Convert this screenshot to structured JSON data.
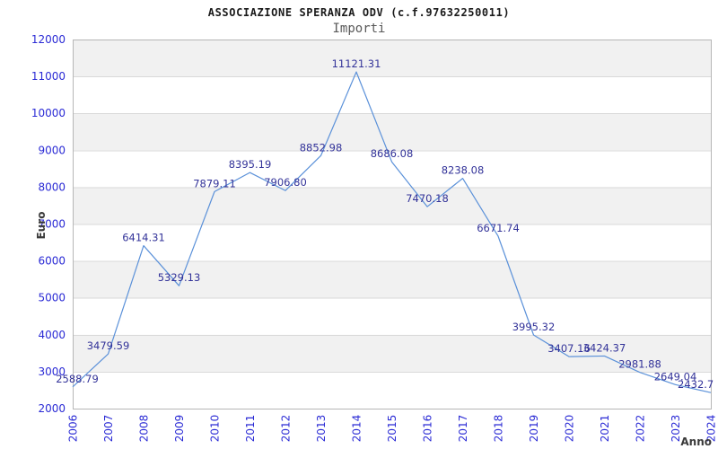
{
  "chart_data": {
    "type": "line",
    "title": "ASSOCIAZIONE SPERANZA ODV (c.f.97632250011)",
    "subtitle": "Importi",
    "xlabel": "Anno",
    "ylabel": "Euro",
    "x": [
      "2006",
      "2007",
      "2008",
      "2009",
      "2010",
      "2011",
      "2012",
      "2013",
      "2014",
      "2015",
      "2016",
      "2017",
      "2018",
      "2019",
      "2020",
      "2021",
      "2022",
      "2023",
      "2024"
    ],
    "values": [
      2588.79,
      3479.59,
      6414.31,
      5329.13,
      7879.11,
      8395.19,
      7906.8,
      8852.98,
      11121.31,
      8686.08,
      7470.18,
      8238.08,
      6671.74,
      3995.32,
      3407.16,
      3424.37,
      2981.88,
      2649.04,
      2432.7
    ],
    "point_labels": [
      "2588.79",
      "3479.59",
      "6414.31",
      "5329.13",
      "7879.11",
      "8395.19",
      "7906.80",
      "8852.98",
      "11121.31",
      "8686.08",
      "7470.18",
      "8238.08",
      "6671.74",
      "3995.32",
      "3407.16",
      "3424.37",
      "2981.88",
      "2649.04",
      "2432.7"
    ],
    "ylim": [
      2000,
      12000
    ],
    "yticks": [
      2000,
      3000,
      4000,
      5000,
      6000,
      7000,
      8000,
      9000,
      10000,
      11000,
      12000
    ],
    "grid": true,
    "legend": "none",
    "colors": {
      "line": "#5b91d9",
      "band": "#f1f1f1",
      "grid": "#d9d9d9",
      "border": "#b6b6b6",
      "tick_label": "#2b2bd5",
      "point_label": "#333399",
      "title": "#1a1a1a",
      "subtitle": "#5a5a5a",
      "axis_label": "#3a3a3a"
    }
  }
}
